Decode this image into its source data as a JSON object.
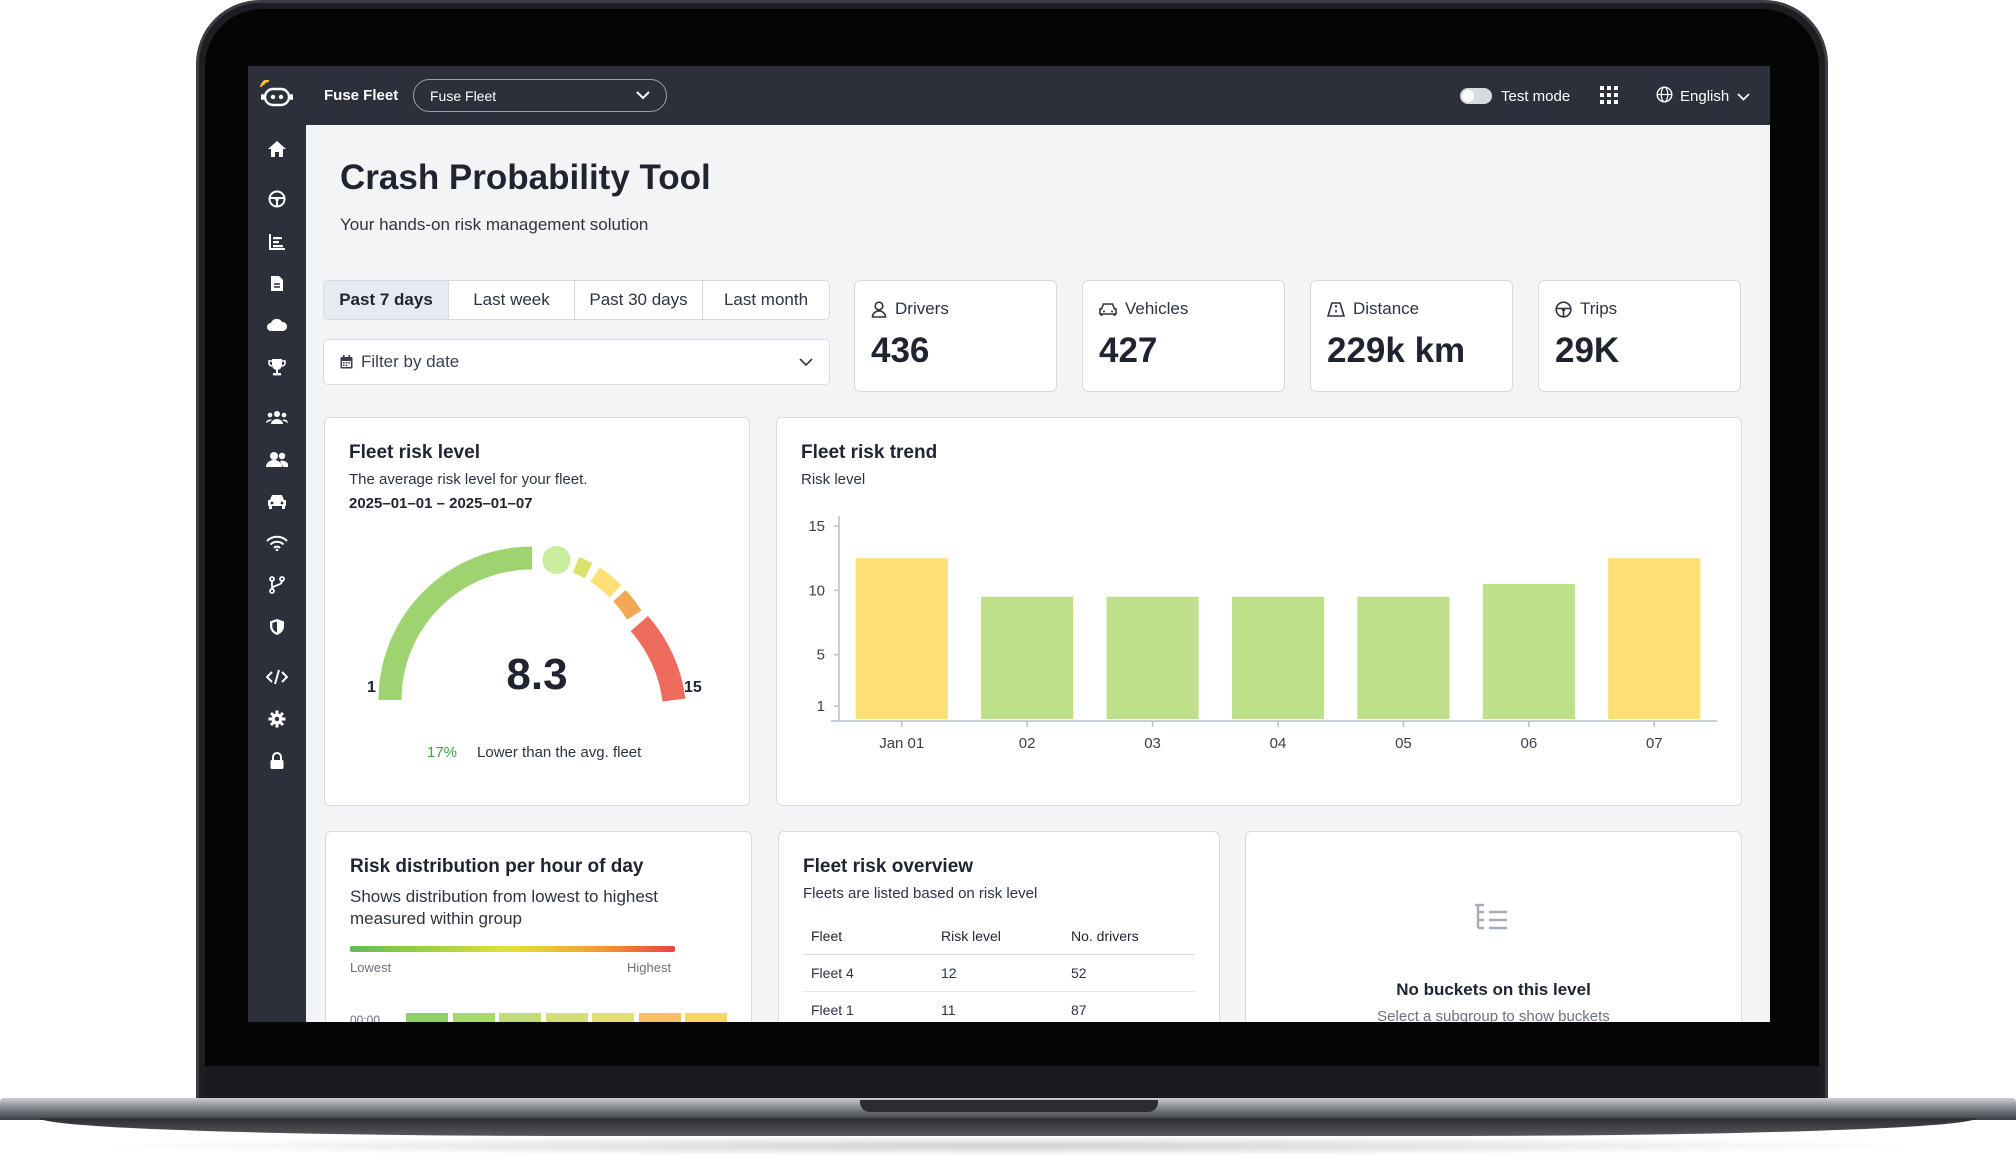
{
  "header": {
    "app_name": "Fuse Fleet",
    "fleet_select_value": "Fuse Fleet",
    "test_mode_label": "Test mode",
    "language": "English"
  },
  "sidebar": {
    "items": [
      "home-icon",
      "steering-wheel-icon",
      "bar-chart-icon",
      "document-icon",
      "cloud-icon",
      "trophy-icon",
      "groups-icon",
      "people-icon",
      "car-icon",
      "wifi-icon",
      "branch-icon",
      "shield-icon",
      "code-icon",
      "gear-icon",
      "lock-icon"
    ]
  },
  "page": {
    "title": "Crash Probability Tool",
    "subtitle": "Your hands-on risk management solution"
  },
  "range_tabs": [
    {
      "label": "Past 7 days",
      "active": true
    },
    {
      "label": "Last week",
      "active": false
    },
    {
      "label": "Past 30 days",
      "active": false
    },
    {
      "label": "Last month",
      "active": false
    }
  ],
  "date_filter": {
    "placeholder": "Filter by date"
  },
  "stats": [
    {
      "label": "Drivers",
      "value": "436",
      "icon": "person-icon"
    },
    {
      "label": "Vehicles",
      "value": "427",
      "icon": "car-icon"
    },
    {
      "label": "Distance",
      "value": "229k km",
      "icon": "road-icon"
    },
    {
      "label": "Trips",
      "value": "29K",
      "icon": "steering-wheel-icon"
    }
  ],
  "fleet_risk_level": {
    "title": "Fleet risk level",
    "description": "The average risk level for your fleet.",
    "date_range": "2025–01–01 – 2025–01–07",
    "value": "8.3",
    "min": "1",
    "max": "15",
    "comparison_pct": "17%",
    "comparison_text": "Lower than the avg. fleet"
  },
  "fleet_risk_trend": {
    "title": "Fleet risk trend",
    "subtitle": "Risk level"
  },
  "chart_data": {
    "type": "bar",
    "categories": [
      "Jan 01",
      "02",
      "03",
      "04",
      "05",
      "06",
      "07"
    ],
    "values": [
      12.5,
      9.5,
      9.5,
      9.5,
      9.5,
      10.5,
      12.5
    ],
    "colors": [
      "#fde073",
      "#bfe08a",
      "#bfe08a",
      "#bfe08a",
      "#bfe08a",
      "#bfe08a",
      "#fde073"
    ],
    "yticks": [
      1,
      5,
      10,
      15
    ],
    "ylim": [
      0,
      15
    ],
    "ylabel": "Risk level",
    "grid": false
  },
  "risk_distribution": {
    "title": "Risk distribution per hour of day",
    "description": "Shows distribution from lowest to highest measured within group",
    "legend_low": "Lowest",
    "legend_high": "Highest",
    "first_hour": "00:00",
    "cell_colors": [
      "#8fd06a",
      "#a9d86e",
      "#c2de72",
      "#d3e070",
      "#e3df6c",
      "#f2c25c",
      "#f6d95a"
    ]
  },
  "fleet_risk_overview": {
    "title": "Fleet risk overview",
    "subtitle": "Fleets are listed based on risk level",
    "columns": [
      "Fleet",
      "Risk level",
      "No. drivers"
    ],
    "rows": [
      [
        "Fleet 4",
        "12",
        "52"
      ],
      [
        "Fleet 1",
        "11",
        "87"
      ]
    ]
  },
  "buckets": {
    "title": "No buckets on this level",
    "subtitle": "Select a subgroup to show buckets"
  },
  "colors": {
    "topbar": "#2b303b",
    "gauge_green": "#9ed36f",
    "gauge_yellow": "#fde073",
    "gauge_orange": "#f5a755",
    "gauge_red": "#ee6b5e"
  }
}
